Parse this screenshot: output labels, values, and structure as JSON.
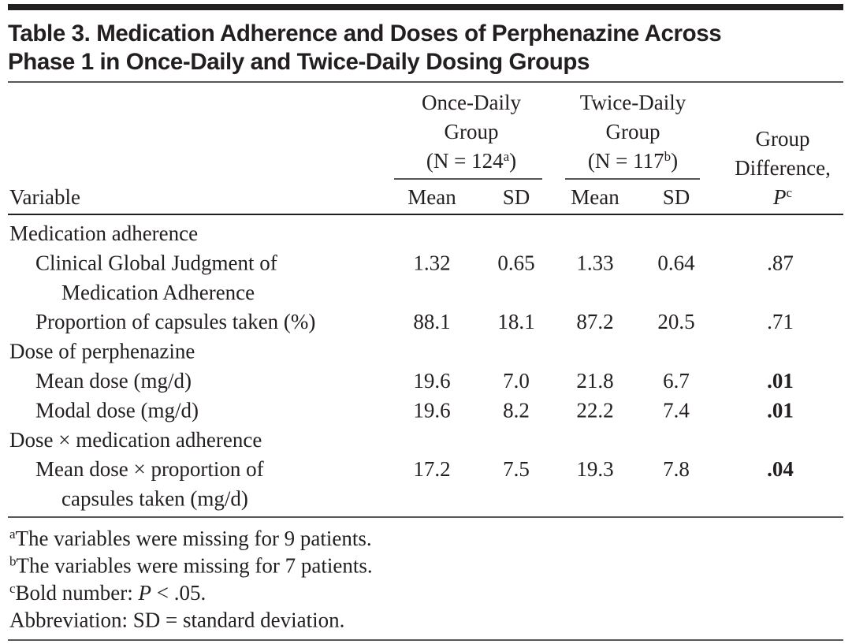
{
  "title": [
    "Table 3. Medication Adherence and Doses of Perphenazine Across",
    "Phase 1 in Once-Daily and Twice-Daily Dosing Groups"
  ],
  "header": {
    "variable": "Variable",
    "groups": [
      {
        "lines": [
          "Once-Daily",
          "Group"
        ],
        "n": "(N = 124",
        "n_note": "a",
        "n_close": ")",
        "mean": "Mean",
        "sd": "SD"
      },
      {
        "lines": [
          "Twice-Daily",
          "Group"
        ],
        "n": "(N = 117",
        "n_note": "b",
        "n_close": ")",
        "mean": "Mean",
        "sd": "SD"
      }
    ],
    "difference": [
      "Group",
      "Difference,"
    ],
    "p": "P",
    "p_note": "c"
  },
  "sections": [
    {
      "name": "Medication adherence",
      "rows": [
        {
          "label": [
            "Clinical Global Judgment of",
            "Medication Adherence"
          ],
          "values": [
            "1.32",
            "0.65",
            "1.33",
            "0.64"
          ],
          "p": ".87",
          "p_bold": false
        },
        {
          "label": [
            "Proportion of capsules taken (%)"
          ],
          "values": [
            "88.1",
            "18.1",
            "87.2",
            "20.5"
          ],
          "p": ".71",
          "p_bold": false
        }
      ]
    },
    {
      "name": "Dose of perphenazine",
      "rows": [
        {
          "label": [
            "Mean dose (mg/d)"
          ],
          "values": [
            "19.6",
            "7.0",
            "21.8",
            "6.7"
          ],
          "p": ".01",
          "p_bold": true
        },
        {
          "label": [
            "Modal dose (mg/d)"
          ],
          "values": [
            "19.6",
            "8.2",
            "22.2",
            "7.4"
          ],
          "p": ".01",
          "p_bold": true
        }
      ]
    },
    {
      "name": "Dose × medication adherence",
      "rows": [
        {
          "label": [
            "Mean dose × proportion of",
            "capsules taken (mg/d)"
          ],
          "values": [
            "17.2",
            "7.5",
            "19.3",
            "7.8"
          ],
          "p": ".04",
          "p_bold": true
        }
      ]
    }
  ],
  "footnotes": [
    {
      "mark": "a",
      "text": "The variables were missing for 9 patients."
    },
    {
      "mark": "b",
      "text": "The variables were missing for 7 patients."
    },
    {
      "mark": "c",
      "text": "Bold number: ",
      "italic": "P",
      "after": " < .05."
    },
    {
      "text": "Abbreviation: SD = standard deviation."
    }
  ]
}
